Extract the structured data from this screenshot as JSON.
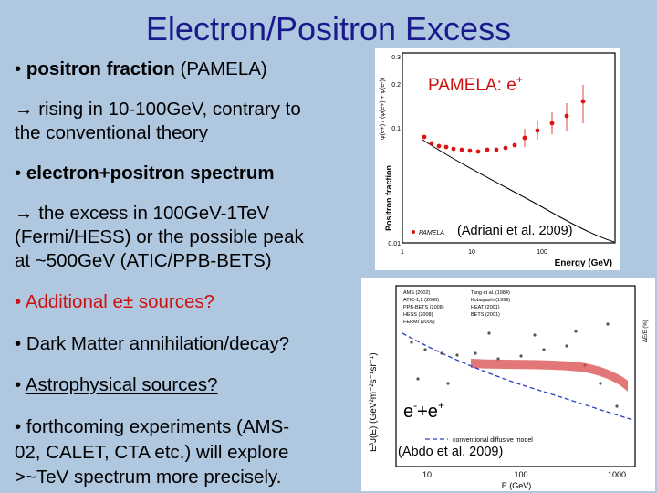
{
  "slide": {
    "title": "Electron/Positron Excess",
    "bullet1_strong": "positron fraction",
    "bullet1_rest": "(PAMELA)",
    "sub1_line1": "rising in 10-100GeV, contrary to",
    "sub1_line2": "the conventional theory",
    "bullet2": "electron+positron spectrum",
    "sub2_line1": "the excess in 100GeV-1TeV",
    "sub2_line2": "(Fermi/HESS) or the possible peak",
    "sub2_line3": "at ~500GeV (ATIC/PPB-BETS)",
    "bullet3": "Additional e± sources?",
    "bullet4": "Dark Matter annihilation/decay?",
    "bullet5": "Astrophysical sources?",
    "bullet6_line1": "forthcoming experiments (AMS-",
    "bullet6_line2": "02, CALET, CTA etc.) will explore",
    "bullet6_line3": ">~TeV spectrum more precisely.",
    "bullet_glyph": "•",
    "arrow_glyph": "→"
  },
  "top_figure": {
    "overlay_label": "PAMELA: e",
    "overlay_sup": "+",
    "citation": "(Adriani et al. 2009)",
    "y_axis_label": "Positron fraction",
    "y_axis_formula": "φ(e+) / (φ(e+) + φ(e-))",
    "x_axis_label": "Energy (GeV)",
    "y_ticks": [
      "0.3",
      "0.2",
      "0.1",
      "0.01"
    ],
    "x_ticks": [
      "1",
      "10",
      "100"
    ],
    "legend": "PAMELA",
    "colors": {
      "data": "#dd1111",
      "model": "#000000"
    }
  },
  "bottom_figure": {
    "y_axis_label": "E³J(E)  (GeV²m⁻²s⁻¹sr⁻¹)",
    "x_axis_label": "E  (GeV)",
    "x_ticks": [
      "10",
      "100",
      "1000"
    ],
    "legend_left": [
      "AMS (2002)",
      "ATIC-1,2 (2008)",
      "PPB-BETS (2008)",
      "HESS (2008)",
      "FERMI (2009)"
    ],
    "legend_right": [
      "Tang et al. (1984)",
      "Kobayashi (1999)",
      "HEAT (2001)",
      "BETS (2001)"
    ],
    "overlay_label": "e",
    "overlay_sup1": "-",
    "overlay_mid": "+e",
    "overlay_sup2": "+",
    "model_label": "conventional diffusive model",
    "citation": "(Abdo et al. 2009)",
    "side_label": "ΔE/E (%)",
    "colors": {
      "band": "#d94a4a",
      "model": "#2a3fbf"
    }
  }
}
